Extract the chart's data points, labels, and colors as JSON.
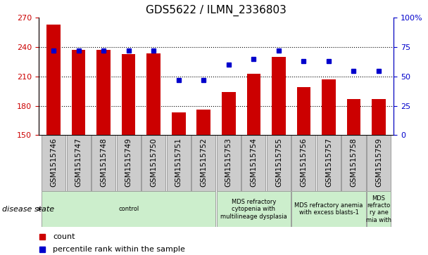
{
  "title": "GDS5622 / ILMN_2336803",
  "samples": [
    "GSM1515746",
    "GSM1515747",
    "GSM1515748",
    "GSM1515749",
    "GSM1515750",
    "GSM1515751",
    "GSM1515752",
    "GSM1515753",
    "GSM1515754",
    "GSM1515755",
    "GSM1515756",
    "GSM1515757",
    "GSM1515758",
    "GSM1515759"
  ],
  "counts": [
    263,
    237,
    237,
    233,
    234,
    173,
    176,
    194,
    213,
    230,
    199,
    207,
    187,
    187
  ],
  "percentiles": [
    72,
    72,
    72,
    72,
    72,
    47,
    47,
    60,
    65,
    72,
    63,
    63,
    55,
    55
  ],
  "bar_color": "#cc0000",
  "dot_color": "#0000cc",
  "ylim_left": [
    150,
    270
  ],
  "ylim_right": [
    0,
    100
  ],
  "yticks_left": [
    150,
    180,
    210,
    240,
    270
  ],
  "yticks_right": [
    0,
    25,
    50,
    75,
    100
  ],
  "grid_values": [
    180,
    210,
    240
  ],
  "disease_groups": [
    {
      "label": "control",
      "start": 0,
      "end": 6,
      "color": "#cceecc"
    },
    {
      "label": "MDS refractory\ncytopenia with\nmultilineage dysplasia",
      "start": 7,
      "end": 9,
      "color": "#cceecc"
    },
    {
      "label": "MDS refractory anemia\nwith excess blasts-1",
      "start": 10,
      "end": 12,
      "color": "#cceecc"
    },
    {
      "label": "MDS\nrefracto\nry ane\nmia with",
      "start": 13,
      "end": 13,
      "color": "#cceecc"
    }
  ],
  "disease_state_label": "disease state",
  "legend_count_label": "count",
  "legend_pct_label": "percentile rank within the sample",
  "bar_width": 0.55,
  "tick_label_fontsize": 7.5,
  "title_fontsize": 11,
  "tickbox_color": "#cccccc"
}
